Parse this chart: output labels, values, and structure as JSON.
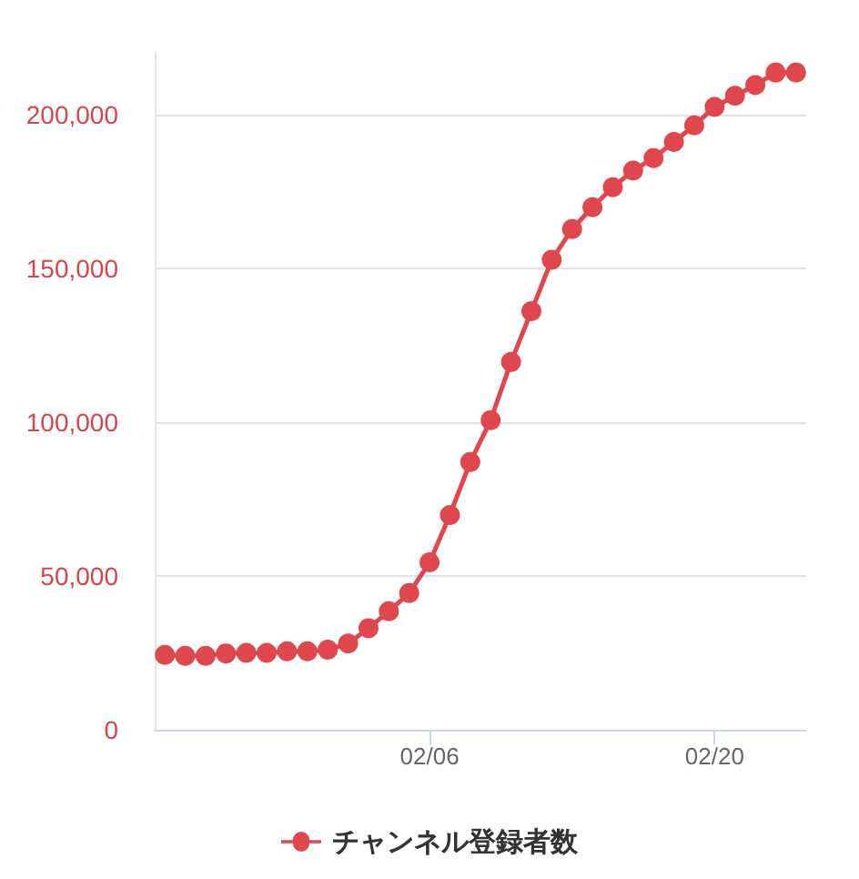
{
  "chart_data": {
    "type": "line",
    "categories": [
      null,
      null,
      null,
      null,
      null,
      null,
      null,
      null,
      null,
      null,
      null,
      null,
      null,
      "02/06",
      null,
      null,
      null,
      null,
      null,
      null,
      null,
      null,
      null,
      null,
      null,
      null,
      null,
      "02/20",
      null,
      null,
      null,
      null
    ],
    "series": [
      {
        "name": "チャンネル登録者数",
        "color": "#e0474c",
        "values": [
          24300,
          24000,
          24000,
          24800,
          25000,
          25000,
          25500,
          25500,
          26000,
          28000,
          33000,
          38500,
          44400,
          54400,
          69800,
          87000,
          100600,
          119500,
          136000,
          152700,
          162700,
          169800,
          176300,
          181700,
          185800,
          191000,
          196400,
          202400,
          206000,
          209500,
          213600,
          213600
        ]
      }
    ],
    "ylim": [
      0,
      220000
    ],
    "yticks": [
      0,
      {
        "value": 50000,
        "label": "50,000"
      },
      {
        "value": 100000,
        "label": "100,000"
      },
      {
        "value": 150000,
        "label": "150,000"
      },
      {
        "value": 200000,
        "label": "200,000"
      }
    ],
    "grid": "y",
    "legend": "bottom",
    "marker": "circle",
    "line_style": "solid"
  }
}
